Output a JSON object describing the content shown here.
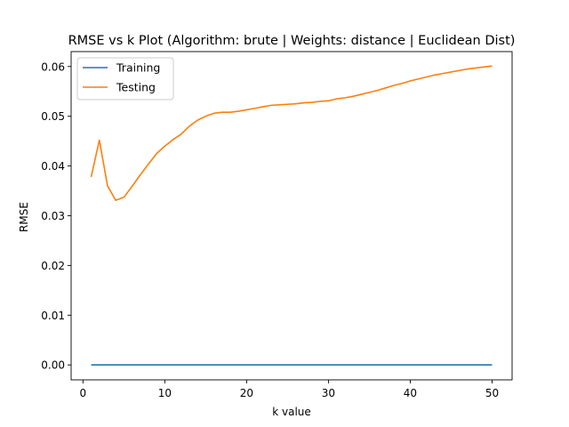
{
  "chart_data": {
    "type": "line",
    "title": "RMSE vs k Plot (Algorithm: brute | Weights: distance | Euclidean Dist)",
    "xlabel": "k value",
    "ylabel": "RMSE",
    "xlim": [
      -1.45,
      52.45
    ],
    "ylim": [
      -0.003,
      0.063
    ],
    "xticks": [
      0,
      10,
      20,
      30,
      40,
      50
    ],
    "xtick_labels": [
      "0",
      "10",
      "20",
      "30",
      "40",
      "50"
    ],
    "yticks": [
      0.0,
      0.01,
      0.02,
      0.03,
      0.04,
      0.05,
      0.06
    ],
    "ytick_labels": [
      "0.00",
      "0.01",
      "0.02",
      "0.03",
      "0.04",
      "0.05",
      "0.06"
    ],
    "grid": false,
    "legend": "top-left",
    "x": [
      1,
      2,
      3,
      4,
      5,
      6,
      7,
      8,
      9,
      10,
      11,
      12,
      13,
      14,
      15,
      16,
      17,
      18,
      19,
      20,
      21,
      22,
      23,
      24,
      25,
      26,
      27,
      28,
      29,
      30,
      31,
      32,
      33,
      34,
      35,
      36,
      37,
      38,
      39,
      40,
      41,
      42,
      43,
      44,
      45,
      46,
      47,
      48,
      49,
      50
    ],
    "series": [
      {
        "name": "Training",
        "color": "#1f77b4",
        "values": [
          0,
          0,
          0,
          0,
          0,
          0,
          0,
          0,
          0,
          0,
          0,
          0,
          0,
          0,
          0,
          0,
          0,
          0,
          0,
          0,
          0,
          0,
          0,
          0,
          0,
          0,
          0,
          0,
          0,
          0,
          0,
          0,
          0,
          0,
          0,
          0,
          0,
          0,
          0,
          0,
          0,
          0,
          0,
          0,
          0,
          0,
          0,
          0,
          0,
          0
        ]
      },
      {
        "name": "Testing",
        "color": "#ff7f0e",
        "values": [
          0.0378,
          0.0452,
          0.036,
          0.0331,
          0.0337,
          0.0359,
          0.0382,
          0.0404,
          0.0425,
          0.044,
          0.0453,
          0.0464,
          0.048,
          0.0492,
          0.05,
          0.0506,
          0.0508,
          0.0508,
          0.051,
          0.0513,
          0.0516,
          0.0519,
          0.0522,
          0.0523,
          0.0524,
          0.0525,
          0.0527,
          0.0528,
          0.053,
          0.0531,
          0.0535,
          0.0537,
          0.054,
          0.0544,
          0.0548,
          0.0552,
          0.0557,
          0.0562,
          0.0566,
          0.0571,
          0.0575,
          0.0579,
          0.0583,
          0.0586,
          0.0589,
          0.0592,
          0.0595,
          0.0597,
          0.0599,
          0.0601
        ]
      }
    ]
  }
}
